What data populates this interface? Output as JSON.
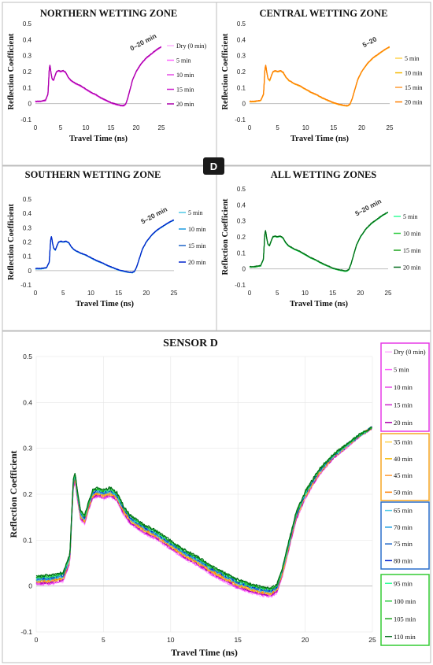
{
  "badge": "D",
  "colors": {
    "dry": "#ffb3ff",
    "m5": "#ff66ff",
    "m10": "#e64ce6",
    "m15": "#cc22cc",
    "m20": "#aa00aa",
    "c5": "#ffd24d",
    "c10": "#f5b800",
    "c15": "#ff9a33",
    "c20": "#ff7f00",
    "s5": "#4dc9e6",
    "s10": "#1a9be0",
    "s15": "#1f66c8",
    "s20": "#0022cc",
    "a5": "#33ff99",
    "a10": "#2ecc40",
    "a15": "#1aa31a",
    "a20": "#006b1a",
    "box_north": "#e63ae6",
    "box_central": "#f5a623",
    "box_south": "#2a6fcc",
    "box_all": "#33cc33"
  },
  "chart_data": [
    {
      "id": "north",
      "type": "line",
      "title": "NORTHERN WETTING ZONE",
      "xlabel": "Travel Time (ns)",
      "ylabel": "Reflection Coefficient",
      "xlim": [
        0,
        25
      ],
      "ylim": [
        -0.1,
        0.5
      ],
      "xticks": [
        "0",
        "5",
        "10",
        "15",
        "20",
        "25"
      ],
      "yticks": [
        "-0.1",
        "0",
        "0.1",
        "0.2",
        "0.3",
        "0.4",
        "0.5"
      ],
      "annotation": "0–20 min",
      "series": [
        {
          "name": "Dry (0 min)",
          "color_key": "dry"
        },
        {
          "name": "5 min",
          "color_key": "m5"
        },
        {
          "name": "10 min",
          "color_key": "m10"
        },
        {
          "name": "15 min",
          "color_key": "m15"
        },
        {
          "name": "20 min",
          "color_key": "m20"
        }
      ]
    },
    {
      "id": "central",
      "type": "line",
      "title": "CENTRAL WETTING ZONE",
      "xlabel": "Travel Time (ns)",
      "ylabel": "Reflection Coefficient",
      "xlim": [
        0,
        25
      ],
      "ylim": [
        -0.1,
        0.5
      ],
      "xticks": [
        "0",
        "5",
        "10",
        "15",
        "20",
        "25"
      ],
      "yticks": [
        "-0.1",
        "0",
        "0.1",
        "0.2",
        "0.3",
        "0.4",
        "0.5"
      ],
      "annotation": "5–20",
      "series": [
        {
          "name": "5 min",
          "color_key": "c5"
        },
        {
          "name": "10 min",
          "color_key": "c10"
        },
        {
          "name": "15 min",
          "color_key": "c15"
        },
        {
          "name": "20 min",
          "color_key": "c20"
        }
      ]
    },
    {
      "id": "south",
      "type": "line",
      "title": "SOUTHERN WETTING ZONE",
      "xlabel": "Travel Time (ns)",
      "ylabel": "Reflection Coefficient",
      "xlim": [
        0,
        25
      ],
      "ylim": [
        -0.1,
        0.5
      ],
      "xticks": [
        "0",
        "5",
        "10",
        "15",
        "20",
        "25"
      ],
      "yticks": [
        "-0.1",
        "0",
        "0.1",
        "0.2",
        "0.3",
        "0.4",
        "0.5"
      ],
      "annotation": "5–20 min",
      "series": [
        {
          "name": "5 min",
          "color_key": "s5"
        },
        {
          "name": "10 min",
          "color_key": "s10"
        },
        {
          "name": "15 min",
          "color_key": "s15"
        },
        {
          "name": "20 min",
          "color_key": "s20"
        }
      ]
    },
    {
      "id": "all",
      "type": "line",
      "title": "ALL WETTING ZONES",
      "xlabel": "Travel Time (ns)",
      "ylabel": "Reflection Coefficient",
      "xlim": [
        0,
        25
      ],
      "ylim": [
        -0.1,
        0.5
      ],
      "xticks": [
        "0",
        "5",
        "10",
        "15",
        "20",
        "25"
      ],
      "yticks": [
        "-0.1",
        "0",
        "0.1",
        "0.2",
        "0.3",
        "0.4",
        "0.5"
      ],
      "annotation": "5–20 min",
      "series": [
        {
          "name": "5 min",
          "color_key": "a5"
        },
        {
          "name": "10 min",
          "color_key": "a10"
        },
        {
          "name": "15 min",
          "color_key": "a15"
        },
        {
          "name": "20 min",
          "color_key": "a20"
        }
      ]
    },
    {
      "id": "sensor",
      "type": "line",
      "title": "SENSOR D",
      "xlabel": "Travel Time (ns)",
      "ylabel": "Reflection Coefficient",
      "xlim": [
        0,
        25
      ],
      "ylim": [
        -0.1,
        0.5
      ],
      "xticks": [
        "0",
        "5",
        "10",
        "15",
        "20",
        "25"
      ],
      "yticks": [
        "-0.1",
        "0",
        "0.1",
        "0.2",
        "0.3",
        "0.4",
        "0.5"
      ],
      "legend_groups": [
        {
          "box_key": "box_north",
          "series": [
            {
              "name": "Dry (0 min)",
              "color_key": "dry"
            },
            {
              "name": "5 min",
              "color_key": "m5"
            },
            {
              "name": "10 min",
              "color_key": "m10"
            },
            {
              "name": "15 min",
              "color_key": "m15"
            },
            {
              "name": "20 min",
              "color_key": "m20"
            }
          ]
        },
        {
          "box_key": "box_central",
          "series": [
            {
              "name": "35 min",
              "color_key": "c5"
            },
            {
              "name": "40 min",
              "color_key": "c10"
            },
            {
              "name": "45 min",
              "color_key": "c15"
            },
            {
              "name": "50 min",
              "color_key": "c20"
            }
          ]
        },
        {
          "box_key": "box_south",
          "series": [
            {
              "name": "65 min",
              "color_key": "s5"
            },
            {
              "name": "70 min",
              "color_key": "s10"
            },
            {
              "name": "75 min",
              "color_key": "s15"
            },
            {
              "name": "80 min",
              "color_key": "s20"
            }
          ]
        },
        {
          "box_key": "box_all",
          "series": [
            {
              "name": "95 min",
              "color_key": "a5"
            },
            {
              "name": "100 min",
              "color_key": "a10"
            },
            {
              "name": "105 min",
              "color_key": "a15"
            },
            {
              "name": "110 min",
              "color_key": "a20"
            }
          ]
        }
      ]
    }
  ],
  "curve_profile": {
    "x": [
      0,
      1,
      2,
      2.5,
      2.75,
      2.9,
      3.05,
      3.3,
      3.6,
      3.9,
      4.2,
      4.6,
      5.0,
      5.5,
      6.0,
      6.5,
      7,
      8,
      9,
      10,
      11,
      12,
      13,
      14,
      15,
      16,
      17,
      17.5,
      17.9,
      18.3,
      18.8,
      19.3,
      20,
      21,
      22,
      23,
      24,
      25
    ],
    "y": [
      0.013,
      0.014,
      0.02,
      0.06,
      0.22,
      0.24,
      0.2,
      0.155,
      0.145,
      0.175,
      0.2,
      0.205,
      0.2,
      0.205,
      0.195,
      0.165,
      0.145,
      0.125,
      0.11,
      0.09,
      0.07,
      0.055,
      0.035,
      0.02,
      0.005,
      -0.005,
      -0.012,
      -0.013,
      -0.005,
      0.03,
      0.09,
      0.15,
      0.2,
      0.25,
      0.285,
      0.31,
      0.335,
      0.355
    ]
  }
}
